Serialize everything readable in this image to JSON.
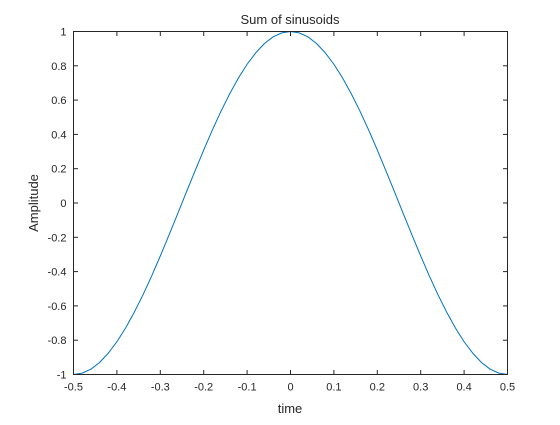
{
  "chart_data": {
    "type": "line",
    "title": "Sum of sinusoids",
    "xlabel": "time",
    "ylabel": "Amplitude",
    "xlim": [
      -0.5,
      0.5
    ],
    "ylim": [
      -1,
      1
    ],
    "xticks": [
      -0.5,
      -0.4,
      -0.3,
      -0.2,
      -0.1,
      0,
      0.1,
      0.2,
      0.3,
      0.4,
      0.5
    ],
    "xtick_labels": [
      "-0.5",
      "-0.4",
      "-0.3",
      "-0.2",
      "-0.1",
      "0",
      "0.1",
      "0.2",
      "0.3",
      "0.4",
      "0.5"
    ],
    "yticks": [
      -1,
      -0.8,
      -0.6,
      -0.4,
      -0.2,
      0,
      0.2,
      0.4,
      0.6,
      0.8,
      1
    ],
    "ytick_labels": [
      "-1",
      "-0.8",
      "-0.6",
      "-0.4",
      "-0.2",
      "0",
      "0.2",
      "0.4",
      "0.6",
      "0.8",
      "1"
    ],
    "grid": false,
    "box": true,
    "series": [
      {
        "color": "#0072bd",
        "x": [
          -0.5,
          -0.48,
          -0.46,
          -0.44,
          -0.42,
          -0.4,
          -0.38,
          -0.36,
          -0.34,
          -0.32,
          -0.3,
          -0.28,
          -0.26,
          -0.24,
          -0.22,
          -0.2,
          -0.18,
          -0.16,
          -0.14,
          -0.12,
          -0.1,
          -0.08,
          -0.06,
          -0.04,
          -0.02,
          0,
          0.02,
          0.04,
          0.06,
          0.08,
          0.1,
          0.12,
          0.14,
          0.16,
          0.18,
          0.2,
          0.22,
          0.24,
          0.26,
          0.28,
          0.3,
          0.32,
          0.34,
          0.36,
          0.38,
          0.4,
          0.42,
          0.44,
          0.46,
          0.48,
          0.5
        ],
        "y": [
          -1,
          -0.992,
          -0.969,
          -0.93,
          -0.876,
          -0.809,
          -0.729,
          -0.637,
          -0.536,
          -0.426,
          -0.309,
          -0.187,
          -0.063,
          0.063,
          0.187,
          0.309,
          0.426,
          0.536,
          0.637,
          0.729,
          0.809,
          0.876,
          0.93,
          0.969,
          0.992,
          1,
          0.992,
          0.969,
          0.93,
          0.876,
          0.809,
          0.729,
          0.637,
          0.536,
          0.426,
          0.309,
          0.187,
          0.063,
          -0.063,
          -0.187,
          -0.309,
          -0.426,
          -0.536,
          -0.637,
          -0.729,
          -0.809,
          -0.876,
          -0.93,
          -0.969,
          -0.992,
          -1
        ]
      }
    ]
  }
}
